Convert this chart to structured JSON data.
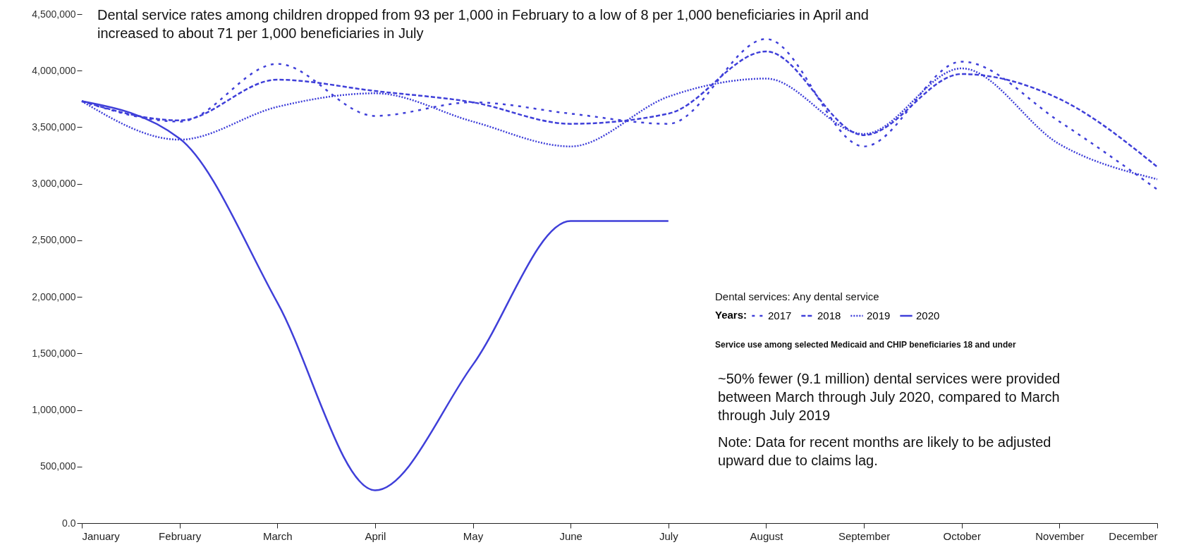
{
  "chart_data": {
    "type": "line",
    "title": "Dental service rates among children dropped from 93 per 1,000 in February to a low of 8 per 1,000 beneficiaries in April and increased to about 71 per 1,000 beneficiaries in July",
    "categories": [
      "January",
      "February",
      "March",
      "April",
      "May",
      "June",
      "July",
      "August",
      "September",
      "October",
      "November",
      "December"
    ],
    "legend_title": "Years:",
    "series": [
      {
        "name": "2017",
        "color": "#3f3fd9",
        "line_style": "dashed",
        "values": [
          3730000,
          3550000,
          4060000,
          3600000,
          3720000,
          3620000,
          3530000,
          4280000,
          3330000,
          4080000,
          3550000,
          2950000
        ]
      },
      {
        "name": "2018",
        "color": "#3f3fd9",
        "line_style": "dashed",
        "values": [
          3730000,
          3560000,
          3920000,
          3820000,
          3720000,
          3530000,
          3620000,
          4170000,
          3430000,
          3970000,
          3750000,
          3150000
        ]
      },
      {
        "name": "2019",
        "color": "#3f3fd9",
        "line_style": "dotted",
        "values": [
          3730000,
          3390000,
          3680000,
          3800000,
          3550000,
          3330000,
          3770000,
          3930000,
          3440000,
          4020000,
          3350000,
          3040000
        ]
      },
      {
        "name": "2020",
        "color": "#3f3fd9",
        "line_style": "solid",
        "values": [
          3730000,
          3400000,
          1950000,
          290000,
          1400000,
          2670000,
          2670000,
          null,
          null,
          null,
          null,
          null
        ]
      }
    ],
    "ylim": [
      0,
      4500000
    ],
    "yticks": [
      {
        "value": 0,
        "label": "0.0"
      },
      {
        "value": 500000,
        "label": "500,000"
      },
      {
        "value": 1000000,
        "label": "1,000,000"
      },
      {
        "value": 1500000,
        "label": "1,500,000"
      },
      {
        "value": 2000000,
        "label": "2,000,000"
      },
      {
        "value": 2500000,
        "label": "2,500,000"
      },
      {
        "value": 3000000,
        "label": "3,000,000"
      },
      {
        "value": 3500000,
        "label": "3,500,000"
      },
      {
        "value": 4000000,
        "label": "4,000,000"
      },
      {
        "value": 4500000,
        "label": "4,500,000"
      }
    ],
    "grid": false,
    "legend": "right",
    "annotations": [
      "Dental services: Any dental service",
      "Service use among selected Medicaid and CHIP beneficiaries 18 and under",
      "~50% fewer (9.1 million) dental services were provided between March through July 2020, compared to March through July 2019",
      "Note: Data for recent months are likely to be adjusted upward due to claims lag."
    ]
  }
}
